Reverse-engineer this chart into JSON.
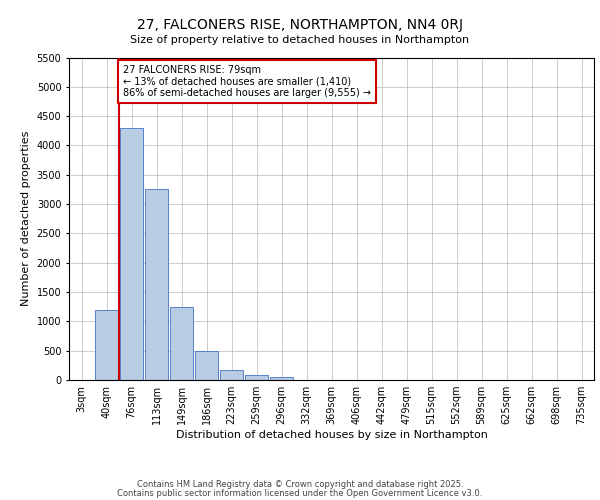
{
  "title_line1": "27, FALCONERS RISE, NORTHAMPTON, NN4 0RJ",
  "title_line2": "Size of property relative to detached houses in Northampton",
  "xlabel": "Distribution of detached houses by size in Northampton",
  "ylabel": "Number of detached properties",
  "categories": [
    "3sqm",
    "40sqm",
    "76sqm",
    "113sqm",
    "149sqm",
    "186sqm",
    "223sqm",
    "259sqm",
    "296sqm",
    "332sqm",
    "369sqm",
    "406sqm",
    "442sqm",
    "479sqm",
    "515sqm",
    "552sqm",
    "589sqm",
    "625sqm",
    "662sqm",
    "698sqm",
    "735sqm"
  ],
  "values": [
    0,
    1200,
    4300,
    3250,
    1250,
    490,
    175,
    90,
    55,
    0,
    0,
    0,
    0,
    0,
    0,
    0,
    0,
    0,
    0,
    0,
    0
  ],
  "bar_color": "#b8cce4",
  "bar_edge_color": "#4472c4",
  "background_color": "#ffffff",
  "grid_color": "#b8b8b8",
  "vline_color": "#cc0000",
  "vline_index": 1.5,
  "annotation_text": "27 FALCONERS RISE: 79sqm\n← 13% of detached houses are smaller (1,410)\n86% of semi-detached houses are larger (9,555) →",
  "annotation_box_color": "#ffffff",
  "annotation_box_edge": "#cc0000",
  "ylim": [
    0,
    5500
  ],
  "yticks": [
    0,
    500,
    1000,
    1500,
    2000,
    2500,
    3000,
    3500,
    4000,
    4500,
    5000,
    5500
  ],
  "footer_line1": "Contains HM Land Registry data © Crown copyright and database right 2025.",
  "footer_line2": "Contains public sector information licensed under the Open Government Licence v3.0.",
  "title_fontsize": 10,
  "subtitle_fontsize": 8,
  "axis_label_fontsize": 8,
  "tick_fontsize": 7,
  "annotation_fontsize": 7,
  "footer_fontsize": 6
}
